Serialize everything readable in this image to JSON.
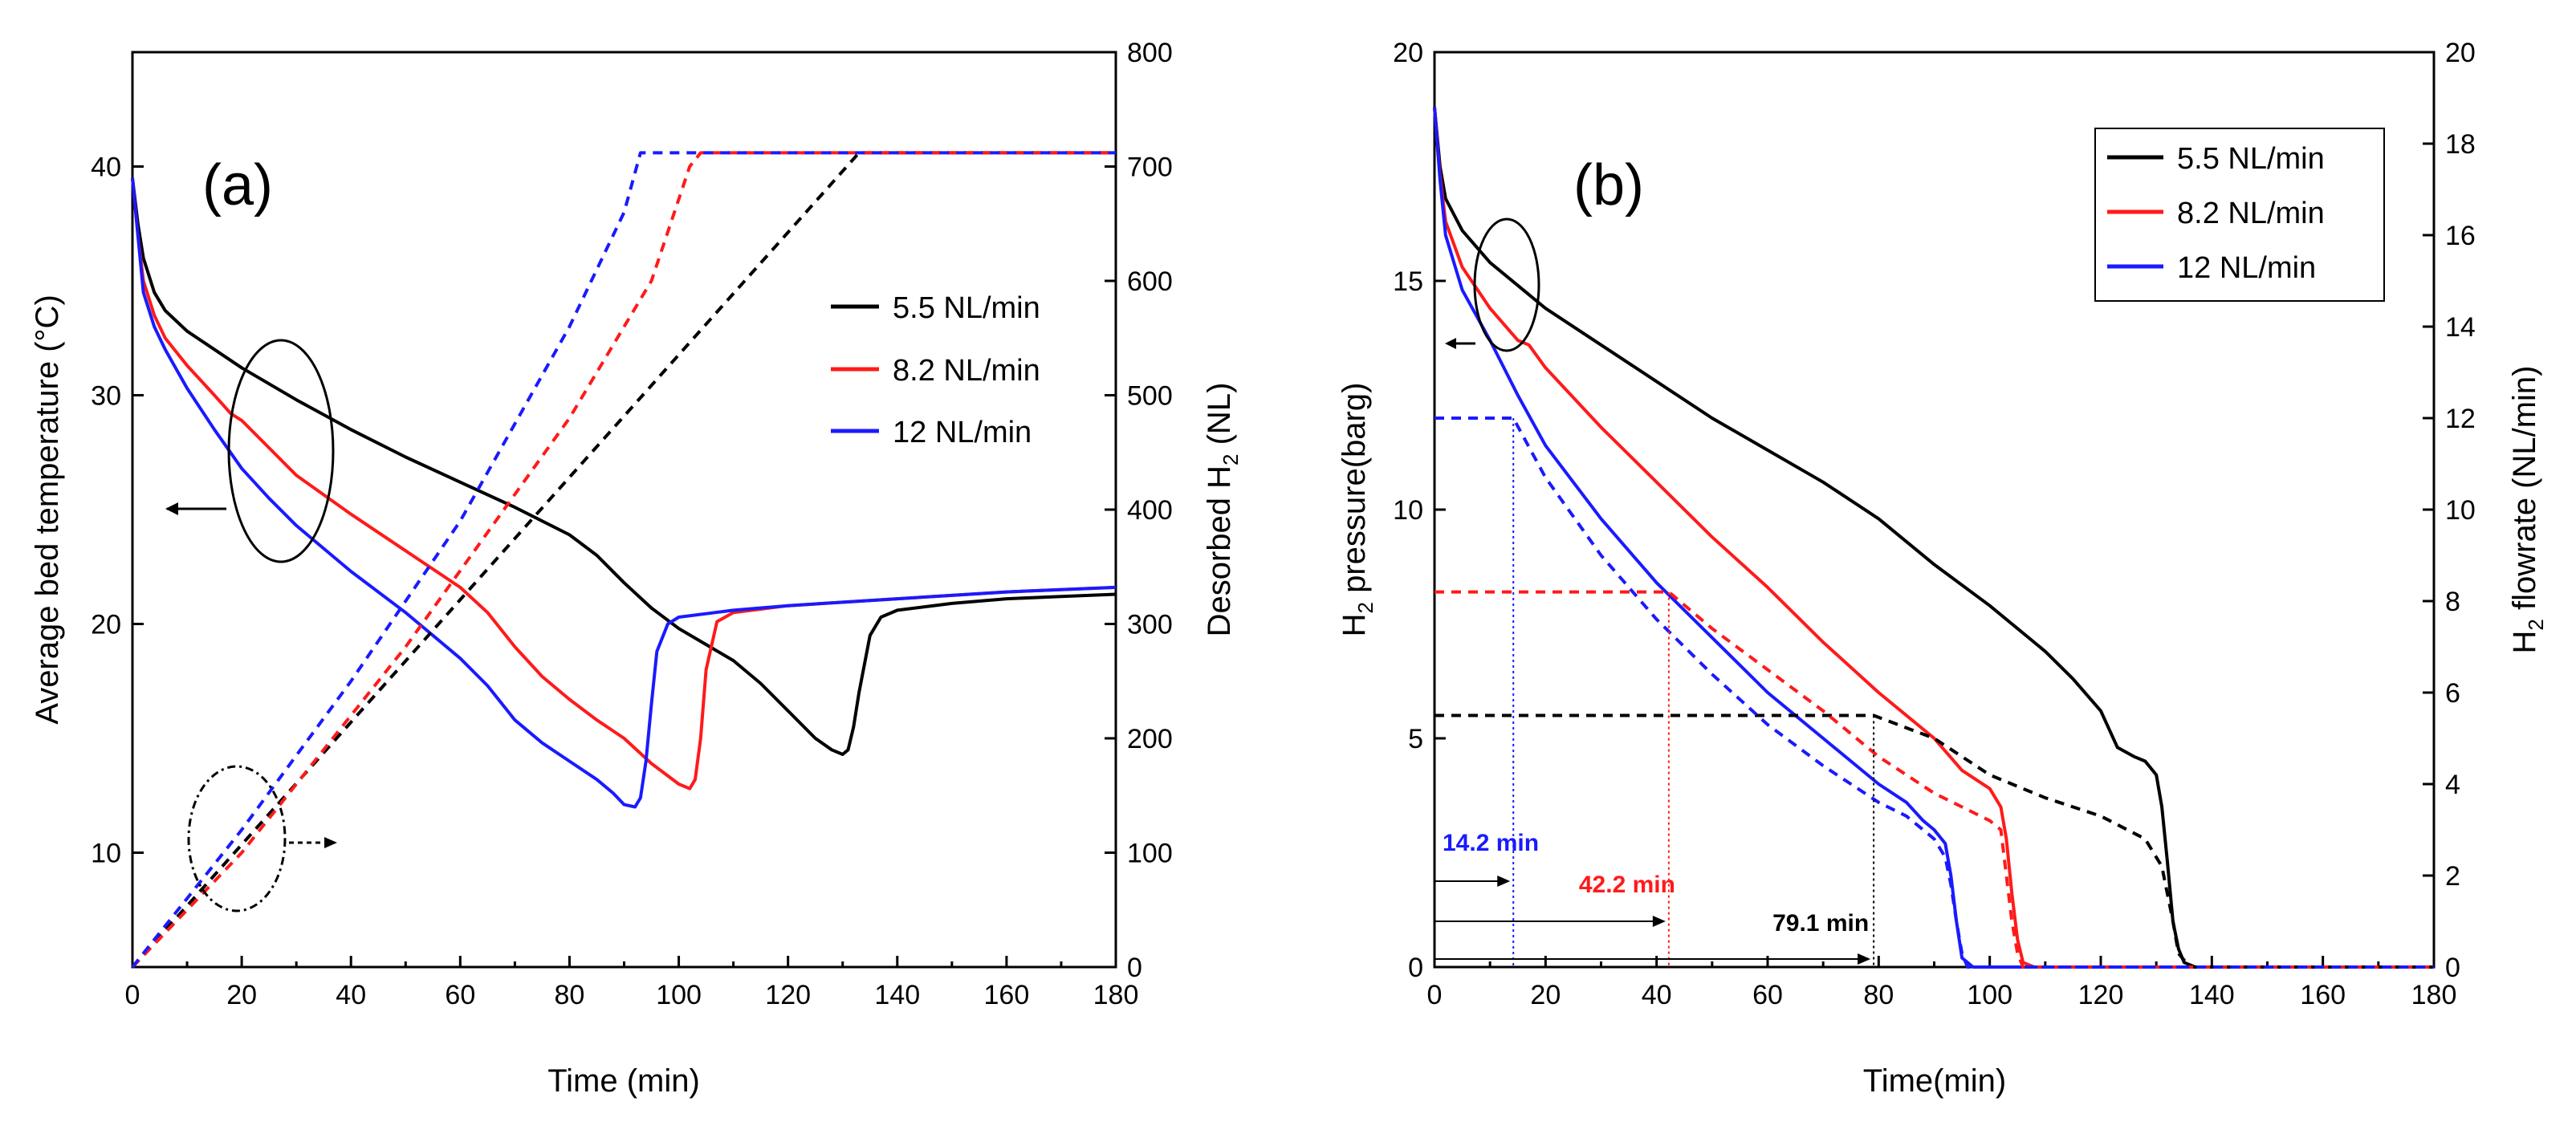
{
  "colors": {
    "black": "#000000",
    "red": "#ff1a1a",
    "blue": "#1a1aff"
  },
  "chart_data": [
    {
      "type": "line",
      "panel_label": "(a)",
      "xlabel": "Time (min)",
      "ylabel_left": "Average bed temperature (°C)",
      "ylabel_right_parts": [
        "Desorbed H",
        "2",
        " (NL)"
      ],
      "xlim": [
        0,
        180
      ],
      "ylim_left": [
        5,
        45
      ],
      "ylim_right": [
        0,
        800
      ],
      "xticks": [
        0,
        20,
        40,
        60,
        80,
        100,
        120,
        140,
        160,
        180
      ],
      "yticks_left": [
        10,
        20,
        30,
        40
      ],
      "yticks_right": [
        0,
        100,
        200,
        300,
        400,
        500,
        600,
        700,
        800
      ],
      "legend": [
        "5.5 NL/min",
        "8.2 NL/min",
        "12 NL/min"
      ],
      "series": [
        {
          "name": "5.5 NL/min",
          "color": "black",
          "axis": "left",
          "style": "solid",
          "points": [
            [
              0,
              39.5
            ],
            [
              1,
              37.5
            ],
            [
              2,
              36
            ],
            [
              4,
              34.5
            ],
            [
              6,
              33.7
            ],
            [
              10,
              32.8
            ],
            [
              20,
              31.2
            ],
            [
              30,
              29.8
            ],
            [
              40,
              28.5
            ],
            [
              50,
              27.3
            ],
            [
              60,
              26.2
            ],
            [
              70,
              25.1
            ],
            [
              80,
              23.9
            ],
            [
              85,
              23
            ],
            [
              90,
              21.8
            ],
            [
              95,
              20.7
            ],
            [
              100,
              19.8
            ],
            [
              110,
              18.4
            ],
            [
              115,
              17.4
            ],
            [
              120,
              16.2
            ],
            [
              125,
              15
            ],
            [
              128,
              14.5
            ],
            [
              130,
              14.3
            ],
            [
              131,
              14.5
            ],
            [
              132,
              15.5
            ],
            [
              133,
              17
            ],
            [
              135,
              19.5
            ],
            [
              137,
              20.3
            ],
            [
              140,
              20.6
            ],
            [
              150,
              20.9
            ],
            [
              160,
              21.1
            ],
            [
              170,
              21.2
            ],
            [
              180,
              21.3
            ]
          ]
        },
        {
          "name": "8.2 NL/min",
          "color": "red",
          "axis": "left",
          "style": "solid",
          "points": [
            [
              0,
              39.5
            ],
            [
              1,
              37
            ],
            [
              2,
              35
            ],
            [
              4,
              33.5
            ],
            [
              6,
              32.5
            ],
            [
              10,
              31.3
            ],
            [
              15,
              30
            ],
            [
              18,
              29.2
            ],
            [
              20,
              28.9
            ],
            [
              25,
              27.7
            ],
            [
              30,
              26.5
            ],
            [
              40,
              24.8
            ],
            [
              50,
              23.2
            ],
            [
              60,
              21.6
            ],
            [
              65,
              20.5
            ],
            [
              70,
              19
            ],
            [
              75,
              17.7
            ],
            [
              80,
              16.7
            ],
            [
              85,
              15.8
            ],
            [
              90,
              15
            ],
            [
              95,
              13.9
            ],
            [
              100,
              13
            ],
            [
              102,
              12.8
            ],
            [
              103,
              13.2
            ],
            [
              104,
              15
            ],
            [
              105,
              18
            ],
            [
              107,
              20.1
            ],
            [
              110,
              20.5
            ],
            [
              120,
              20.8
            ],
            [
              140,
              21.1
            ],
            [
              160,
              21.4
            ],
            [
              180,
              21.6
            ]
          ]
        },
        {
          "name": "12 NL/min",
          "color": "blue",
          "axis": "left",
          "style": "solid",
          "points": [
            [
              0,
              39.5
            ],
            [
              1,
              37
            ],
            [
              2,
              34.5
            ],
            [
              4,
              33
            ],
            [
              6,
              32
            ],
            [
              10,
              30.3
            ],
            [
              15,
              28.5
            ],
            [
              20,
              26.8
            ],
            [
              25,
              25.5
            ],
            [
              30,
              24.3
            ],
            [
              40,
              22.3
            ],
            [
              50,
              20.5
            ],
            [
              60,
              18.5
            ],
            [
              65,
              17.3
            ],
            [
              70,
              15.8
            ],
            [
              75,
              14.8
            ],
            [
              80,
              14
            ],
            [
              85,
              13.2
            ],
            [
              88,
              12.6
            ],
            [
              90,
              12.1
            ],
            [
              92,
              12
            ],
            [
              93,
              12.4
            ],
            [
              94,
              14
            ],
            [
              95,
              16.5
            ],
            [
              96,
              18.8
            ],
            [
              98,
              20
            ],
            [
              100,
              20.3
            ],
            [
              110,
              20.6
            ],
            [
              120,
              20.8
            ],
            [
              140,
              21.1
            ],
            [
              160,
              21.4
            ],
            [
              180,
              21.6
            ]
          ]
        },
        {
          "name": "5.5 NL/min",
          "color": "black",
          "axis": "right",
          "style": "dashed",
          "points": [
            [
              0,
              0
            ],
            [
              133,
              712
            ],
            [
              180,
              712
            ]
          ]
        },
        {
          "name": "8.2 NL/min",
          "color": "red",
          "axis": "right",
          "style": "dashed",
          "points": [
            [
              0,
              0
            ],
            [
              20,
              100
            ],
            [
              50,
              280
            ],
            [
              80,
              480
            ],
            [
              95,
              600
            ],
            [
              102,
              700
            ],
            [
              104,
              712
            ],
            [
              180,
              712
            ]
          ]
        },
        {
          "name": "12 NL/min",
          "color": "blue",
          "axis": "right",
          "style": "dashed",
          "points": [
            [
              0,
              0
            ],
            [
              20,
              120
            ],
            [
              40,
              250
            ],
            [
              60,
              390
            ],
            [
              80,
              560
            ],
            [
              90,
              660
            ],
            [
              93,
              712
            ],
            [
              180,
              712
            ]
          ]
        }
      ],
      "annotations": []
    },
    {
      "type": "line",
      "panel_label": "(b)",
      "xlabel": "Time(min)",
      "ylabel_left_parts": [
        "H",
        "2",
        " pressure(barg)"
      ],
      "ylabel_right_parts": [
        "H",
        "2",
        " flowrate (NL/min)"
      ],
      "xlim": [
        0,
        180
      ],
      "ylim_left": [
        0,
        20
      ],
      "ylim_right": [
        0,
        20
      ],
      "xticks": [
        0,
        20,
        40,
        60,
        80,
        100,
        120,
        140,
        160,
        180
      ],
      "yticks_left": [
        0,
        5,
        10,
        15,
        20
      ],
      "yticks_right": [
        0,
        2,
        4,
        6,
        8,
        10,
        12,
        14,
        16,
        18,
        20
      ],
      "legend": [
        "5.5 NL/min",
        "8.2 NL/min",
        "12 NL/min"
      ],
      "series": [
        {
          "name": "5.5 NL/min",
          "color": "black",
          "axis": "left",
          "style": "solid",
          "points": [
            [
              0,
              18.8
            ],
            [
              1,
              17.5
            ],
            [
              2,
              16.8
            ],
            [
              5,
              16.1
            ],
            [
              10,
              15.4
            ],
            [
              20,
              14.4
            ],
            [
              30,
              13.6
            ],
            [
              40,
              12.8
            ],
            [
              50,
              12
            ],
            [
              60,
              11.3
            ],
            [
              70,
              10.6
            ],
            [
              80,
              9.8
            ],
            [
              90,
              8.8
            ],
            [
              100,
              7.9
            ],
            [
              110,
              6.9
            ],
            [
              115,
              6.3
            ],
            [
              120,
              5.6
            ],
            [
              123,
              4.8
            ],
            [
              126,
              4.6
            ],
            [
              128,
              4.5
            ],
            [
              130,
              4.2
            ],
            [
              131,
              3.5
            ],
            [
              132,
              2.3
            ],
            [
              133,
              1
            ],
            [
              134,
              0.4
            ],
            [
              135,
              0.1
            ],
            [
              137,
              0
            ],
            [
              180,
              0
            ]
          ]
        },
        {
          "name": "8.2 NL/min",
          "color": "red",
          "axis": "left",
          "style": "solid",
          "points": [
            [
              0,
              18.8
            ],
            [
              1,
              17.3
            ],
            [
              2,
              16.3
            ],
            [
              5,
              15.3
            ],
            [
              10,
              14.4
            ],
            [
              15,
              13.7
            ],
            [
              17,
              13.6
            ],
            [
              20,
              13.1
            ],
            [
              30,
              11.8
            ],
            [
              40,
              10.6
            ],
            [
              50,
              9.4
            ],
            [
              60,
              8.3
            ],
            [
              70,
              7.1
            ],
            [
              80,
              6
            ],
            [
              90,
              5
            ],
            [
              95,
              4.3
            ],
            [
              100,
              3.9
            ],
            [
              102,
              3.5
            ],
            [
              103,
              2.8
            ],
            [
              104,
              1.6
            ],
            [
              105,
              0.6
            ],
            [
              106,
              0.1
            ],
            [
              108,
              0
            ],
            [
              180,
              0
            ]
          ]
        },
        {
          "name": "12 NL/min",
          "color": "blue",
          "axis": "left",
          "style": "solid",
          "points": [
            [
              0,
              18.8
            ],
            [
              1,
              17.2
            ],
            [
              2,
              16
            ],
            [
              5,
              14.8
            ],
            [
              10,
              13.7
            ],
            [
              15,
              12.5
            ],
            [
              20,
              11.4
            ],
            [
              30,
              9.8
            ],
            [
              40,
              8.4
            ],
            [
              50,
              7.2
            ],
            [
              60,
              6
            ],
            [
              70,
              5
            ],
            [
              80,
              4
            ],
            [
              85,
              3.6
            ],
            [
              88,
              3.2
            ],
            [
              90,
              3
            ],
            [
              92,
              2.7
            ],
            [
              93,
              2
            ],
            [
              94,
              1
            ],
            [
              95,
              0.2
            ],
            [
              97,
              0
            ],
            [
              180,
              0
            ]
          ]
        },
        {
          "name": "5.5 NL/min",
          "color": "black",
          "axis": "right",
          "style": "dashed",
          "points": [
            [
              0,
              5.5
            ],
            [
              79.1,
              5.5
            ],
            [
              90,
              5
            ],
            [
              100,
              4.2
            ],
            [
              110,
              3.7
            ],
            [
              120,
              3.3
            ],
            [
              128,
              2.8
            ],
            [
              131,
              2.2
            ],
            [
              133,
              1
            ],
            [
              134,
              0.3
            ],
            [
              136,
              0
            ],
            [
              180,
              0
            ]
          ]
        },
        {
          "name": "8.2 NL/min",
          "color": "red",
          "axis": "right",
          "style": "dashed",
          "points": [
            [
              0,
              8.2
            ],
            [
              42.2,
              8.2
            ],
            [
              50,
              7.4
            ],
            [
              60,
              6.5
            ],
            [
              70,
              5.6
            ],
            [
              80,
              4.6
            ],
            [
              90,
              3.8
            ],
            [
              100,
              3.2
            ],
            [
              102,
              3
            ],
            [
              103,
              2
            ],
            [
              104,
              1
            ],
            [
              105,
              0.3
            ],
            [
              106,
              0
            ],
            [
              180,
              0
            ]
          ]
        },
        {
          "name": "12 NL/min",
          "color": "blue",
          "axis": "right",
          "style": "dashed",
          "points": [
            [
              0,
              12
            ],
            [
              14.2,
              12
            ],
            [
              20,
              10.7
            ],
            [
              30,
              9
            ],
            [
              40,
              7.6
            ],
            [
              50,
              6.4
            ],
            [
              60,
              5.3
            ],
            [
              70,
              4.4
            ],
            [
              80,
              3.6
            ],
            [
              85,
              3.3
            ],
            [
              88,
              3
            ],
            [
              90,
              2.8
            ],
            [
              92,
              2.4
            ],
            [
              93,
              1.8
            ],
            [
              94,
              1
            ],
            [
              95,
              0.3
            ],
            [
              96,
              0
            ],
            [
              180,
              0
            ]
          ]
        }
      ],
      "annotations": [
        {
          "label": "14.2 min",
          "x": 14.2,
          "color": "blue"
        },
        {
          "label": "42.2 min",
          "x": 42.2,
          "color": "red"
        },
        {
          "label": "79.1 min",
          "x": 79.1,
          "color": "black"
        }
      ]
    }
  ]
}
